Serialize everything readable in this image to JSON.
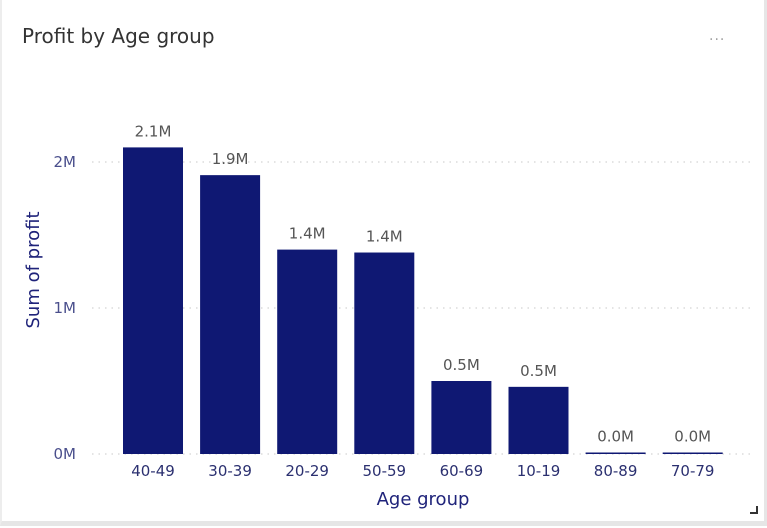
{
  "visual": {
    "title": "Profit by Age group",
    "more_options_icon": "ellipsis-icon",
    "resize_icon": "resize-corner-icon"
  },
  "chart_data": {
    "type": "bar",
    "title": "Profit by Age group",
    "xlabel": "Age group",
    "ylabel": "Sum of profit",
    "categories": [
      "40-49",
      "30-39",
      "20-29",
      "50-59",
      "60-69",
      "10-19",
      "80-89",
      "70-79"
    ],
    "values": [
      2100000,
      1910000,
      1400000,
      1380000,
      500000,
      460000,
      8000,
      8000
    ],
    "data_labels": [
      "2.1M",
      "1.9M",
      "1.4M",
      "1.4M",
      "0.5M",
      "0.5M",
      "0.0M",
      "0.0M"
    ],
    "yticks": [
      {
        "value": 0,
        "label": "0M"
      },
      {
        "value": 1000000,
        "label": "1M"
      },
      {
        "value": 2000000,
        "label": "2M"
      }
    ],
    "ylim": [
      0,
      2500000
    ],
    "grid": true,
    "bar_color": "#0f1873",
    "grid_color": "#c8c8c8"
  }
}
